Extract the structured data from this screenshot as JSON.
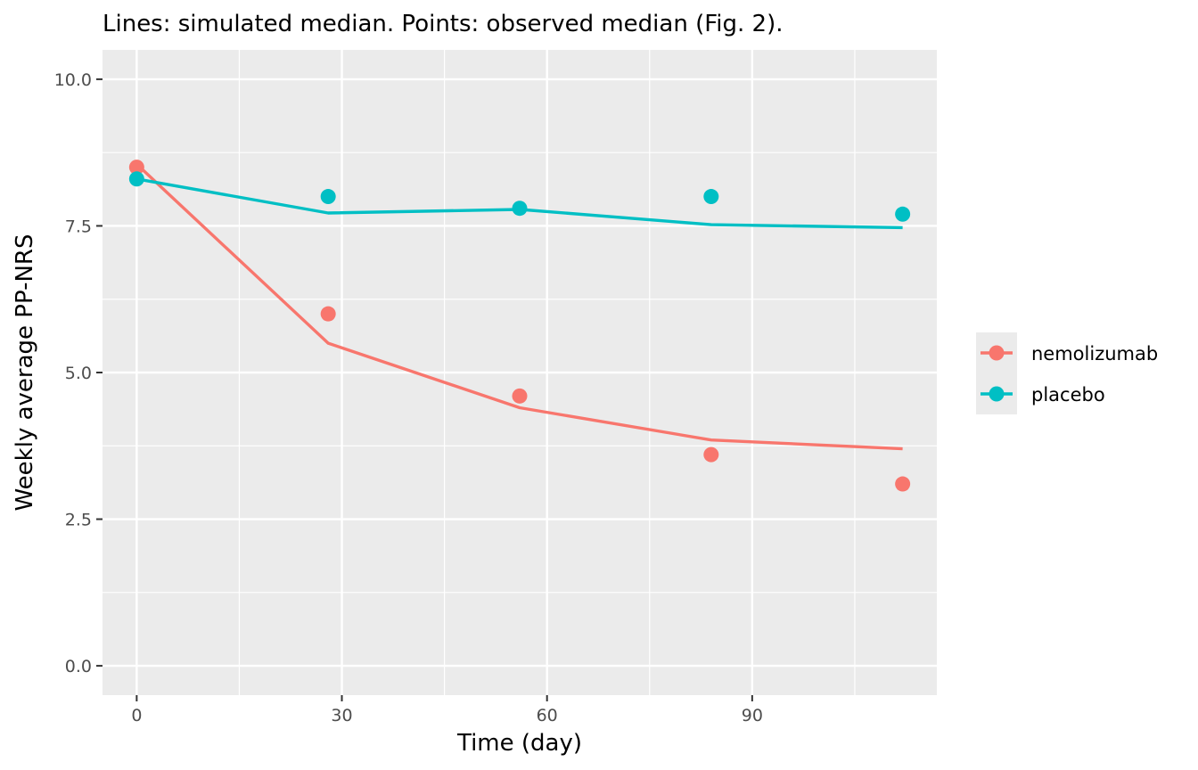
{
  "chart_data": {
    "type": "line",
    "title": "Lines: simulated median. Points: observed median (Fig. 2).",
    "xlabel": "Time (day)",
    "ylabel": "Weekly average PP-NRS",
    "xlim": [
      -5,
      117
    ],
    "ylim": [
      -0.5,
      10.5
    ],
    "x_ticks": [
      0,
      30,
      60,
      90
    ],
    "x_tick_labels": [
      "0",
      "30",
      "60",
      "90"
    ],
    "y_ticks": [
      0,
      2.5,
      5,
      7.5,
      10
    ],
    "y_tick_labels": [
      "0.0",
      "2.5",
      "5.0",
      "7.5",
      "10.0"
    ],
    "grid": true,
    "legend_position": "right",
    "series": [
      {
        "name": "nemolizumab",
        "color": "#F8766D",
        "simulated": {
          "x": [
            0,
            28,
            56,
            84,
            112
          ],
          "y": [
            8.55,
            5.5,
            4.4,
            3.85,
            3.7
          ]
        },
        "observed": {
          "x": [
            0,
            28,
            56,
            84,
            112
          ],
          "y": [
            8.5,
            6.0,
            4.6,
            3.6,
            3.1
          ]
        }
      },
      {
        "name": "placebo",
        "color": "#00BFC4",
        "simulated": {
          "x": [
            0,
            28,
            56,
            84,
            112
          ],
          "y": [
            8.3,
            7.72,
            7.78,
            7.52,
            7.47
          ]
        },
        "observed": {
          "x": [
            0,
            28,
            56,
            84,
            112
          ],
          "y": [
            8.3,
            8.0,
            7.8,
            8.0,
            7.7
          ]
        }
      }
    ]
  }
}
